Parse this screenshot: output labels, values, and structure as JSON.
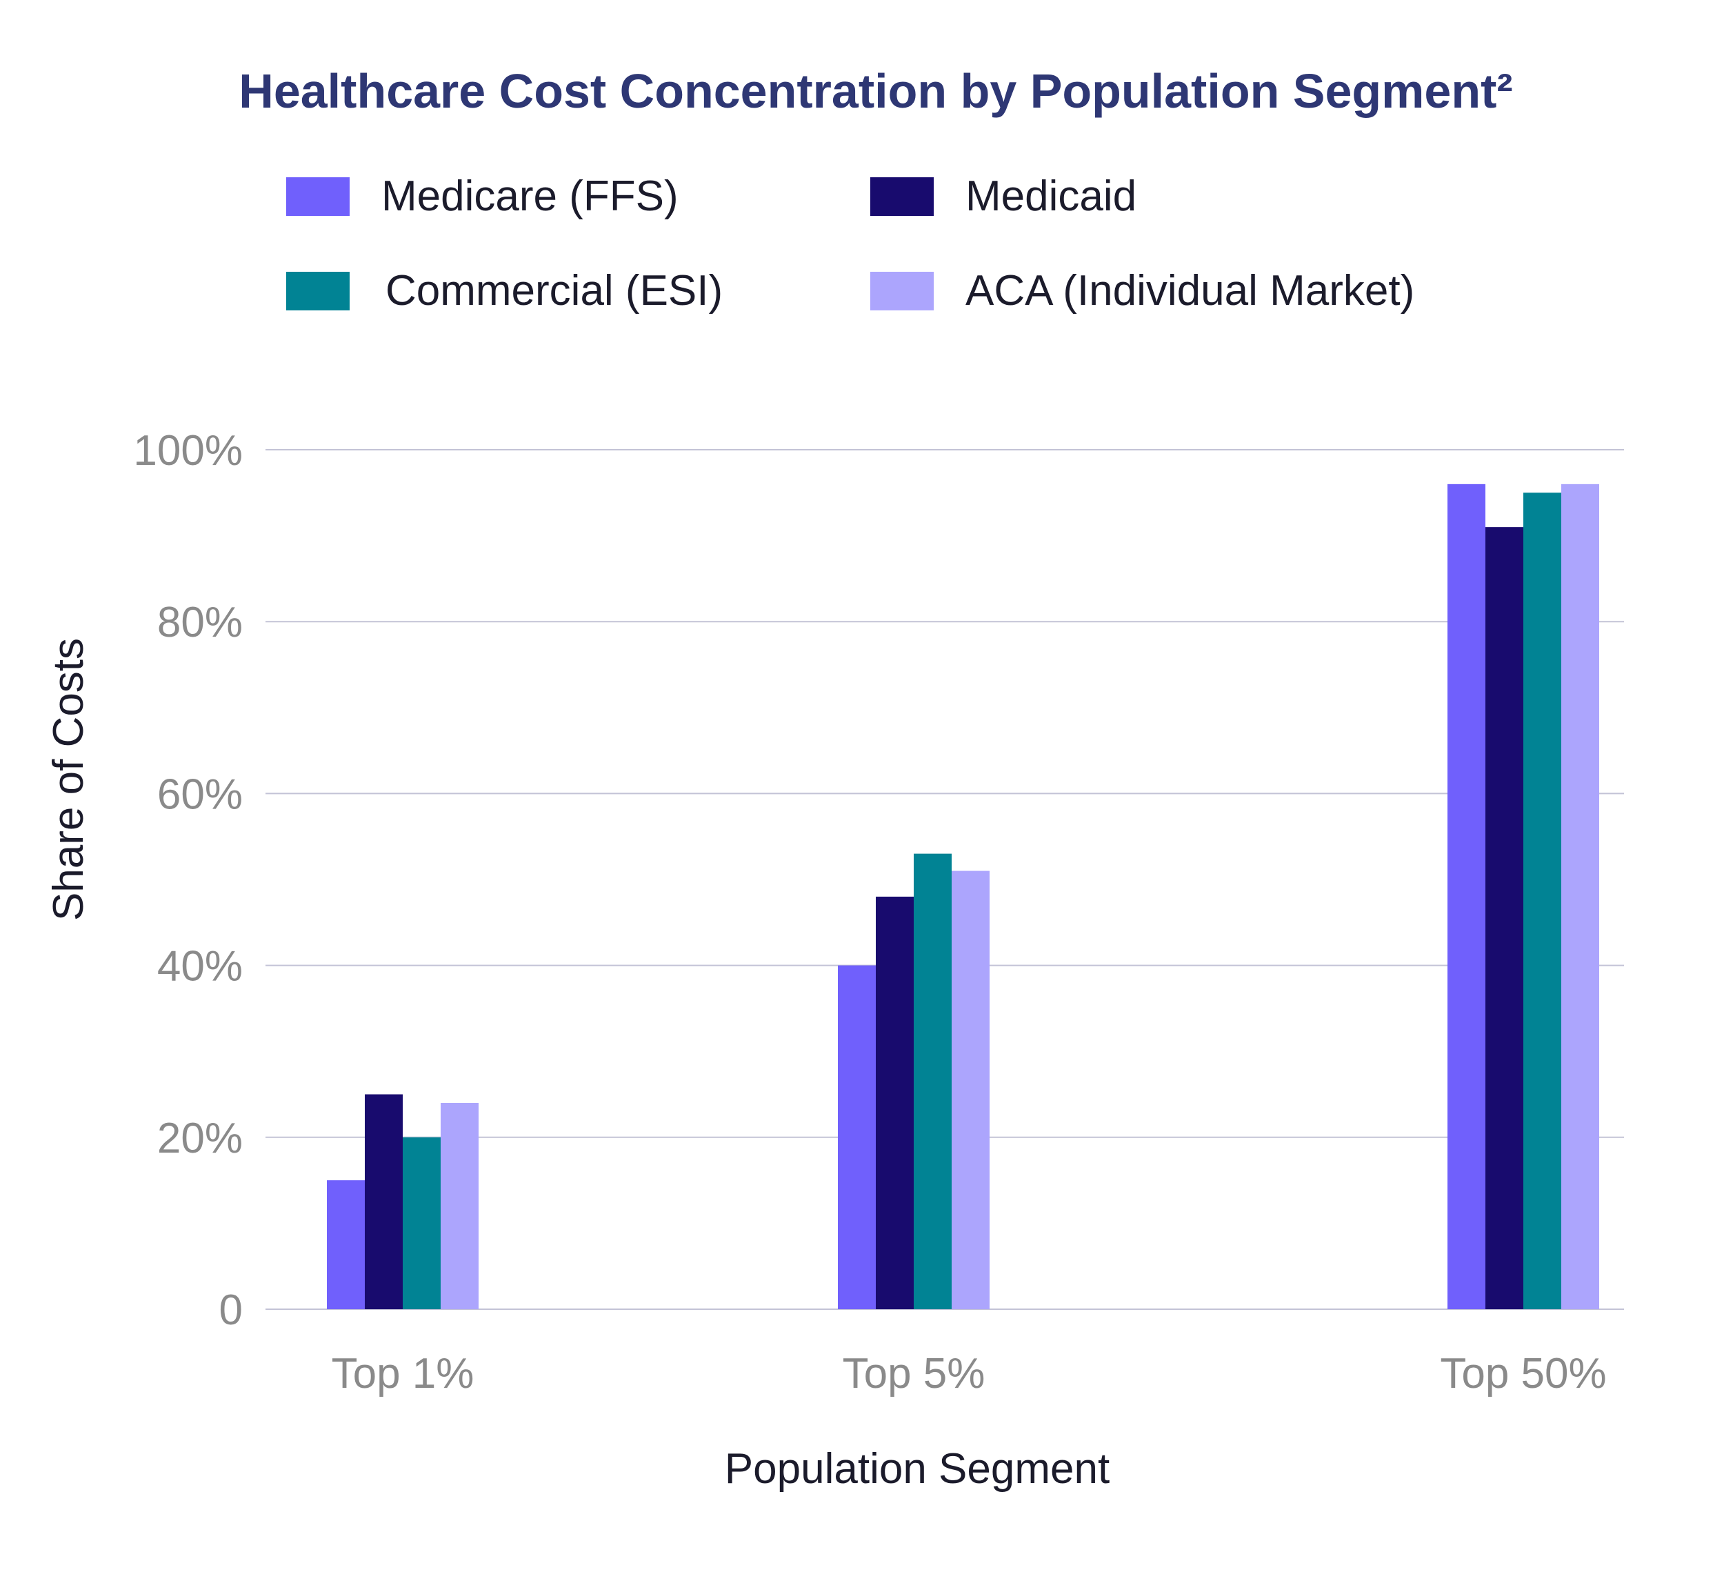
{
  "chart_data": {
    "type": "bar",
    "title": "Healthcare Cost Concentration by Population Segment²",
    "xlabel": "Population Segment",
    "ylabel": "Share of Costs",
    "categories": [
      "Top 1%",
      "Top 5%",
      "Top 50%"
    ],
    "series": [
      {
        "name": "Medicare (FFS)",
        "color": "#7060fc",
        "values": [
          15,
          40,
          96
        ]
      },
      {
        "name": "Medicaid",
        "color": "#180b6e",
        "values": [
          25,
          48,
          91
        ]
      },
      {
        "name": "Commercial (ESI)",
        "color": "#018394",
        "values": [
          20,
          53,
          95
        ]
      },
      {
        "name": "ACA (Individual Market)",
        "color": "#aca5fd",
        "values": [
          24,
          51,
          96
        ]
      }
    ],
    "ylim": [
      0,
      100
    ],
    "yticks": [
      {
        "value": 0,
        "label": "0"
      },
      {
        "value": 20,
        "label": "20%"
      },
      {
        "value": 40,
        "label": "40%"
      },
      {
        "value": 60,
        "label": "60%"
      },
      {
        "value": 80,
        "label": "80%"
      },
      {
        "value": 100,
        "label": "100%"
      }
    ],
    "grid": true,
    "legend": "top"
  },
  "colors": {
    "title": "#2e3774",
    "tick": "#8a8a8a",
    "gridline": "#c3c3d6",
    "axis_label": "#1b1b2b"
  }
}
